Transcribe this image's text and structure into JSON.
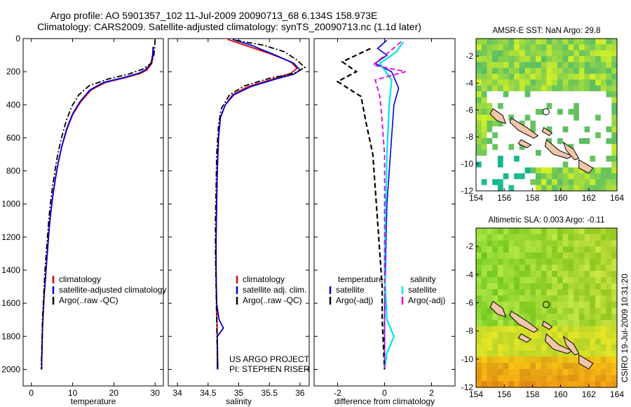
{
  "header": {
    "line1": "Argo profile: AO 5901357_102 11-Jul-2009 20090713_68 6.134S 158.973E",
    "line2": "Climatology: CARS2009. Satellite-adjusted climatology: synTS_20090713.nc (1.1d later)"
  },
  "side_stamp": "CSIRO 19-Jul-2009 10:31:20",
  "project": {
    "line1": "US ARGO PROJECT",
    "line2": "PI: STEPHEN RISER"
  },
  "colors": {
    "climatology": "#e00000",
    "satellite": "#0000dd",
    "argo": "#000000",
    "sal_satellite": "#00e5e5",
    "sal_argo": "#dd00dd"
  },
  "chart_data": [
    {
      "type": "line",
      "id": "temperature",
      "xlabel": "temperature",
      "ylabel": "",
      "xlim": [
        -2,
        32
      ],
      "ylim": [
        2100,
        0
      ],
      "xticks": [
        "0",
        "10",
        "20",
        "30"
      ],
      "yticks": [
        "0",
        "200",
        "400",
        "600",
        "800",
        "1000",
        "1200",
        "1400",
        "1600",
        "1800",
        "2000"
      ],
      "legend": [
        "climatology",
        "satellite-adjusted climatology",
        "Argo(..raw -QC)"
      ],
      "series": [
        {
          "name": "climatology",
          "values": [
            [
              29.6,
              50
            ],
            [
              29.5,
              100
            ],
            [
              29.2,
              150
            ],
            [
              28.0,
              190
            ],
            [
              26.5,
              210
            ],
            [
              23.0,
              235
            ],
            [
              18.0,
              265
            ],
            [
              14.5,
              310
            ],
            [
              12.0,
              380
            ],
            [
              10.0,
              460
            ],
            [
              8.6,
              550
            ],
            [
              7.4,
              650
            ],
            [
              6.5,
              750
            ],
            [
              5.8,
              850
            ],
            [
              5.2,
              950
            ],
            [
              4.7,
              1050
            ],
            [
              4.3,
              1150
            ],
            [
              4.0,
              1250
            ],
            [
              3.7,
              1350
            ],
            [
              3.4,
              1450
            ],
            [
              3.1,
              1550
            ],
            [
              2.9,
              1650
            ],
            [
              2.7,
              1750
            ],
            [
              2.6,
              1850
            ],
            [
              2.5,
              1950
            ],
            [
              2.5,
              2000
            ]
          ]
        },
        {
          "name": "satellite-adjusted climatology",
          "values": [
            [
              29.5,
              50
            ],
            [
              29.4,
              100
            ],
            [
              29.0,
              150
            ],
            [
              27.6,
              190
            ],
            [
              26.0,
              210
            ],
            [
              22.5,
              235
            ],
            [
              17.5,
              265
            ],
            [
              14.2,
              310
            ],
            [
              11.8,
              380
            ],
            [
              9.9,
              460
            ],
            [
              8.5,
              550
            ],
            [
              7.4,
              650
            ],
            [
              6.5,
              750
            ],
            [
              5.8,
              850
            ],
            [
              5.2,
              950
            ],
            [
              4.7,
              1050
            ],
            [
              4.3,
              1150
            ],
            [
              4.0,
              1250
            ],
            [
              3.7,
              1350
            ],
            [
              3.4,
              1450
            ],
            [
              3.1,
              1550
            ],
            [
              2.9,
              1650
            ],
            [
              2.7,
              1750
            ],
            [
              2.6,
              1850
            ],
            [
              2.5,
              1950
            ],
            [
              2.5,
              2000
            ]
          ]
        },
        {
          "name": "Argo(..raw -QC)",
          "values": [
            [
              30.0,
              5
            ],
            [
              29.9,
              50
            ],
            [
              29.7,
              100
            ],
            [
              29.0,
              150
            ],
            [
              27.0,
              185
            ],
            [
              23.5,
              215
            ],
            [
              18.5,
              245
            ],
            [
              14.0,
              285
            ],
            [
              11.5,
              340
            ],
            [
              9.8,
              410
            ],
            [
              8.4,
              500
            ],
            [
              7.3,
              600
            ],
            [
              6.4,
              700
            ],
            [
              5.7,
              800
            ],
            [
              5.1,
              900
            ],
            [
              4.6,
              1000
            ],
            [
              4.2,
              1100
            ],
            [
              3.9,
              1200
            ],
            [
              3.6,
              1300
            ],
            [
              3.3,
              1400
            ],
            [
              3.1,
              1500
            ],
            [
              2.9,
              1600
            ],
            [
              2.7,
              1700
            ],
            [
              2.6,
              1800
            ],
            [
              2.5,
              1900
            ],
            [
              2.4,
              2000
            ]
          ]
        }
      ]
    },
    {
      "type": "line",
      "id": "salinity",
      "xlabel": "salinity",
      "ylabel": "",
      "xlim": [
        33.85,
        36.15
      ],
      "ylim": [
        2100,
        0
      ],
      "xticks": [
        "34",
        "34.5",
        "35",
        "35.5",
        "36"
      ],
      "legend": [
        "climatology",
        "satellite adj. clim.",
        "Argo(..raw -QC)"
      ],
      "series": [
        {
          "name": "climatology",
          "values": [
            [
              34.82,
              5
            ],
            [
              35.1,
              40
            ],
            [
              35.5,
              90
            ],
            [
              35.85,
              140
            ],
            [
              35.95,
              180
            ],
            [
              35.85,
              210
            ],
            [
              35.55,
              245
            ],
            [
              35.15,
              290
            ],
            [
              34.9,
              340
            ],
            [
              34.78,
              400
            ],
            [
              34.7,
              480
            ],
            [
              34.67,
              600
            ],
            [
              34.65,
              800
            ],
            [
              34.64,
              1000
            ],
            [
              34.63,
              1200
            ],
            [
              34.63,
              1400
            ],
            [
              34.64,
              1600
            ],
            [
              34.65,
              1800
            ],
            [
              34.66,
              2000
            ]
          ]
        },
        {
          "name": "satellite adj. clim.",
          "values": [
            [
              34.9,
              5
            ],
            [
              35.2,
              40
            ],
            [
              35.6,
              100
            ],
            [
              35.9,
              150
            ],
            [
              36.0,
              190
            ],
            [
              35.9,
              215
            ],
            [
              35.6,
              245
            ],
            [
              35.2,
              290
            ],
            [
              34.92,
              340
            ],
            [
              34.78,
              400
            ],
            [
              34.7,
              480
            ],
            [
              34.67,
              600
            ],
            [
              34.65,
              800
            ],
            [
              34.64,
              1000
            ],
            [
              34.63,
              1200
            ],
            [
              34.63,
              1400
            ],
            [
              34.64,
              1600
            ],
            [
              34.68,
              1700
            ],
            [
              34.75,
              1750
            ],
            [
              34.65,
              1800
            ],
            [
              34.65,
              2000
            ]
          ]
        },
        {
          "name": "Argo(..raw -QC)",
          "values": [
            [
              34.95,
              10
            ],
            [
              35.4,
              40
            ],
            [
              35.75,
              80
            ],
            [
              35.95,
              130
            ],
            [
              36.08,
              175
            ],
            [
              35.9,
              210
            ],
            [
              35.5,
              240
            ],
            [
              35.1,
              285
            ],
            [
              34.85,
              340
            ],
            [
              34.72,
              420
            ],
            [
              34.67,
              520
            ],
            [
              34.64,
              700
            ],
            [
              34.63,
              900
            ],
            [
              34.62,
              1100
            ],
            [
              34.62,
              1300
            ],
            [
              34.63,
              1500
            ],
            [
              34.64,
              1700
            ],
            [
              34.65,
              1900
            ],
            [
              34.66,
              2000
            ]
          ]
        }
      ]
    },
    {
      "type": "line",
      "id": "difference",
      "xlabel": "difference from climatology",
      "ylabel": "",
      "xlim": [
        -3.0,
        3.0
      ],
      "ylim": [
        2100,
        0
      ],
      "xticks": [
        "-2",
        "0",
        "2"
      ],
      "legend": [
        "temperature",
        "salinity",
        "satellite",
        "satellite",
        "Argo(-adj)",
        "Argo(-adj)"
      ],
      "series": [
        {
          "name": "temperature satellite",
          "values": [
            [
              0.1,
              10
            ],
            [
              -0.3,
              60
            ],
            [
              0.1,
              100
            ],
            [
              -0.4,
              150
            ],
            [
              0.3,
              200
            ],
            [
              0.6,
              300
            ],
            [
              0.4,
              400
            ],
            [
              0.3,
              600
            ],
            [
              0.2,
              800
            ],
            [
              0.1,
              1000
            ],
            [
              0.05,
              1300
            ],
            [
              0.0,
              1700
            ],
            [
              0.0,
              2000
            ]
          ]
        },
        {
          "name": "salinity satellite",
          "values": [
            [
              0.8,
              20
            ],
            [
              0.5,
              80
            ],
            [
              -0.2,
              150
            ],
            [
              0.3,
              250
            ],
            [
              0.2,
              400
            ],
            [
              0.1,
              700
            ],
            [
              0.05,
              1000
            ],
            [
              0.0,
              1400
            ],
            [
              0.1,
              1700
            ],
            [
              0.4,
              1800
            ],
            [
              0.1,
              1900
            ],
            [
              0.0,
              2000
            ]
          ]
        },
        {
          "name": "temperature Argo(-adj)",
          "values": [
            [
              -0.6,
              60
            ],
            [
              -1.8,
              140
            ],
            [
              -1.2,
              200
            ],
            [
              -2.0,
              260
            ],
            [
              -1.0,
              350
            ],
            [
              -0.8,
              500
            ],
            [
              -0.5,
              700
            ],
            [
              -0.4,
              900
            ],
            [
              -0.3,
              1100
            ],
            [
              -0.2,
              1300
            ],
            [
              -0.1,
              1500
            ],
            [
              -0.1,
              1700
            ],
            [
              0.0,
              2000
            ]
          ]
        },
        {
          "name": "salinity Argo(-adj)",
          "values": [
            [
              0.7,
              20
            ],
            [
              0.2,
              80
            ],
            [
              -0.5,
              160
            ],
            [
              0.9,
              200
            ],
            [
              -0.4,
              250
            ],
            [
              -0.2,
              350
            ],
            [
              -0.1,
              500
            ],
            [
              0.0,
              700
            ],
            [
              0.0,
              1000
            ],
            [
              0.0,
              1300
            ],
            [
              0.0,
              1600
            ],
            [
              0.0,
              2000
            ]
          ]
        }
      ]
    },
    {
      "type": "heatmap",
      "id": "sst_map",
      "title": "AMSR-E SST: NaN Argo: 29.8",
      "xticks": [
        "154",
        "156",
        "158",
        "160",
        "162",
        "164"
      ],
      "yticks": [
        "-2",
        "-4",
        "-6",
        "-8",
        "-10",
        "-12"
      ],
      "xlim": [
        154,
        164
      ],
      "ylim": [
        -12,
        -0.7
      ]
    },
    {
      "type": "heatmap",
      "id": "sla_map",
      "title": "Altimetric SLA: 0.003 Argo: -0.11",
      "xticks": [
        "154",
        "156",
        "158",
        "160",
        "162",
        "164"
      ],
      "yticks": [
        "-2",
        "-4",
        "-6",
        "-8",
        "-10",
        "-12"
      ],
      "xlim": [
        154,
        164
      ],
      "ylim": [
        -12,
        -0.7
      ]
    }
  ]
}
